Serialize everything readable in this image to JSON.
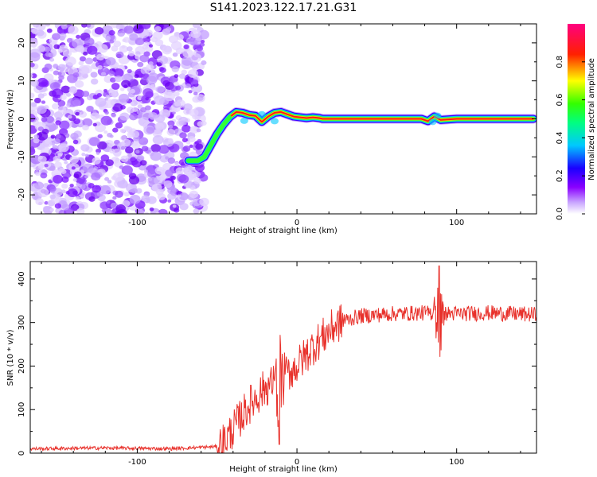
{
  "title": "S141.2023.122.17.21.G31",
  "chart_data": [
    {
      "type": "heatmap",
      "xlabel": "Height of straight line (km)",
      "ylabel": "Frequency (Hz)",
      "xlim": [
        -167,
        150
      ],
      "ylim": [
        -25,
        25
      ],
      "xticks": [
        -100,
        0,
        100
      ],
      "yticks": [
        -20,
        -10,
        0,
        10,
        20
      ],
      "colorbar": {
        "label": "Normalized spectral amplitude",
        "range": [
          0,
          1
        ],
        "ticks": [
          0.0,
          0.2,
          0.4,
          0.6,
          0.8
        ],
        "colors": [
          "#ffffff",
          "#8a00ff",
          "#0000ff",
          "#00e5ff",
          "#00ff2a",
          "#ffff00",
          "#ff0000",
          "#ff0080"
        ]
      },
      "noise_region_end_x": -58,
      "ridge": {
        "x": [
          -68,
          -62,
          -58,
          -54,
          -50,
          -46,
          -42,
          -38,
          -34,
          -30,
          -26,
          -22,
          -18,
          -14,
          -10,
          -6,
          -2,
          2,
          6,
          10,
          14,
          16,
          30,
          60,
          78,
          82,
          86,
          90,
          100,
          120,
          148
        ],
        "y": [
          -11,
          -11,
          -10,
          -7,
          -4,
          -1.5,
          0.5,
          1.8,
          1.6,
          1.0,
          0.8,
          -0.8,
          0.6,
          1.6,
          1.8,
          1.2,
          0.6,
          0.4,
          0.2,
          0.4,
          0.2,
          0,
          0,
          0,
          0,
          -0.6,
          0.6,
          -0.3,
          0,
          0,
          0
        ]
      }
    },
    {
      "type": "line",
      "xlabel": "Height of straight line (km)",
      "ylabel": "SNR (10 * v/v)",
      "xlim": [
        -167,
        150
      ],
      "ylim": [
        0,
        440
      ],
      "xticks": [
        -100,
        0,
        100
      ],
      "yticks": [
        0,
        100,
        200,
        300,
        400
      ],
      "series": [
        {
          "color": "#e8312b",
          "trend_x": [
            -167,
            -120,
            -80,
            -50,
            -45,
            -40,
            -30,
            -20,
            -10,
            0,
            10,
            20,
            25,
            30,
            40,
            60,
            80,
            100,
            120,
            150
          ],
          "trend_y": [
            10,
            12,
            10,
            15,
            30,
            55,
            110,
            150,
            170,
            200,
            245,
            280,
            295,
            305,
            315,
            320,
            322,
            320,
            322,
            318
          ],
          "spikes": [
            {
              "x": -11,
              "peak": 300,
              "trough": 20
            },
            {
              "x": 89,
              "peak": 430,
              "trough": 190
            }
          ]
        }
      ]
    }
  ]
}
